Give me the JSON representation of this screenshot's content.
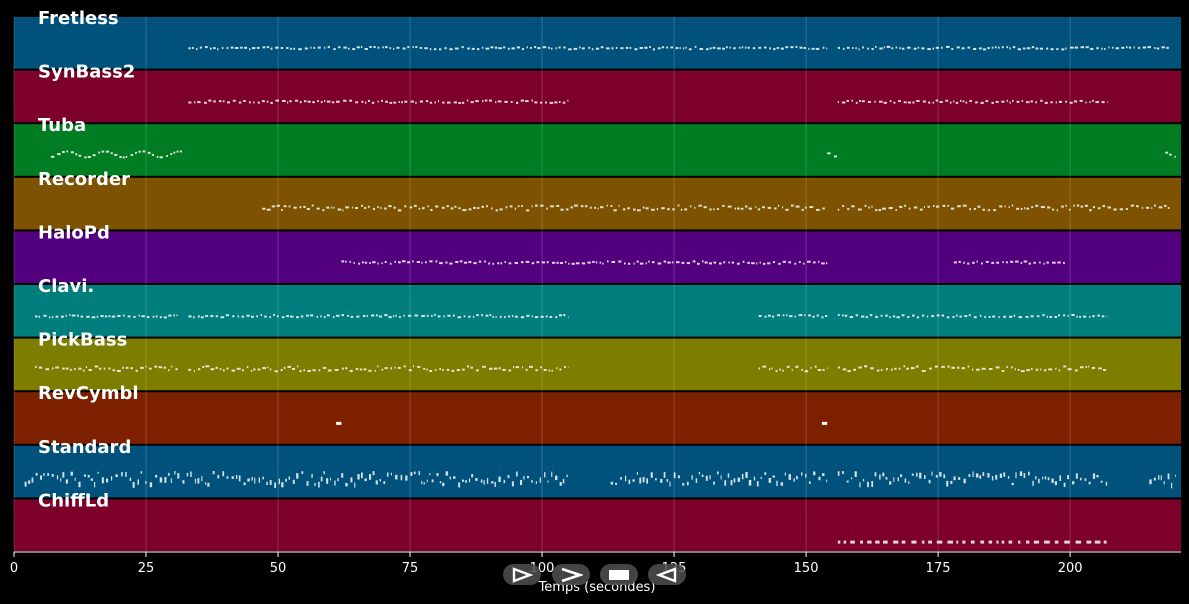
{
  "chart_data": {
    "type": "piano-roll",
    "xlabel": "Temps (secondes)",
    "xlim": [
      0,
      221
    ],
    "x_ticks": [
      0,
      25,
      50,
      75,
      100,
      125,
      150,
      175,
      200
    ],
    "grid": true,
    "tracks": [
      {
        "name": "Fretless",
        "color": "#00527d",
        "segments": [
          [
            33,
            154
          ],
          [
            156,
            219
          ]
        ],
        "style": "dense"
      },
      {
        "name": "SynBass2",
        "color": "#7d002a",
        "segments": [
          [
            33,
            105
          ],
          [
            156,
            207
          ]
        ],
        "style": "dense"
      },
      {
        "name": "Tuba",
        "color": "#007d22",
        "segments": [
          [
            7,
            32
          ],
          [
            154,
            156
          ],
          [
            218,
            220
          ]
        ],
        "style": "wavy"
      },
      {
        "name": "Recorder",
        "color": "#7d5200",
        "segments": [
          [
            47,
            154
          ],
          [
            156,
            219
          ]
        ],
        "style": "sparse"
      },
      {
        "name": "HaloPd",
        "color": "#52007d",
        "segments": [
          [
            62,
            154
          ],
          [
            178,
            199
          ]
        ],
        "style": "dense"
      },
      {
        "name": "Clavi.",
        "color": "#007d7d",
        "segments": [
          [
            4,
            31
          ],
          [
            33,
            105
          ],
          [
            141,
            154
          ],
          [
            156,
            207
          ]
        ],
        "style": "dense"
      },
      {
        "name": "PickBass",
        "color": "#7d7d00",
        "segments": [
          [
            4,
            31
          ],
          [
            33,
            105
          ],
          [
            141,
            154
          ],
          [
            156,
            207
          ]
        ],
        "style": "sparse"
      },
      {
        "name": "RevCymbl",
        "color": "#7d2000",
        "segments": [
          [
            61,
            62
          ],
          [
            153,
            154
          ]
        ],
        "style": "blocks"
      },
      {
        "name": "Standard",
        "color": "#00527d",
        "segments": [
          [
            2,
            105
          ],
          [
            113,
            154
          ],
          [
            156,
            207
          ],
          [
            215,
            220
          ]
        ],
        "style": "drums"
      },
      {
        "name": "ChiffLd",
        "color": "#7d002a",
        "segments": [
          [
            156,
            207
          ]
        ],
        "style": "dashed"
      }
    ]
  },
  "controls": {
    "play_label": "Play",
    "forward_label": "Forward",
    "stop_label": "Stop",
    "rewind_label": "Rewind"
  }
}
